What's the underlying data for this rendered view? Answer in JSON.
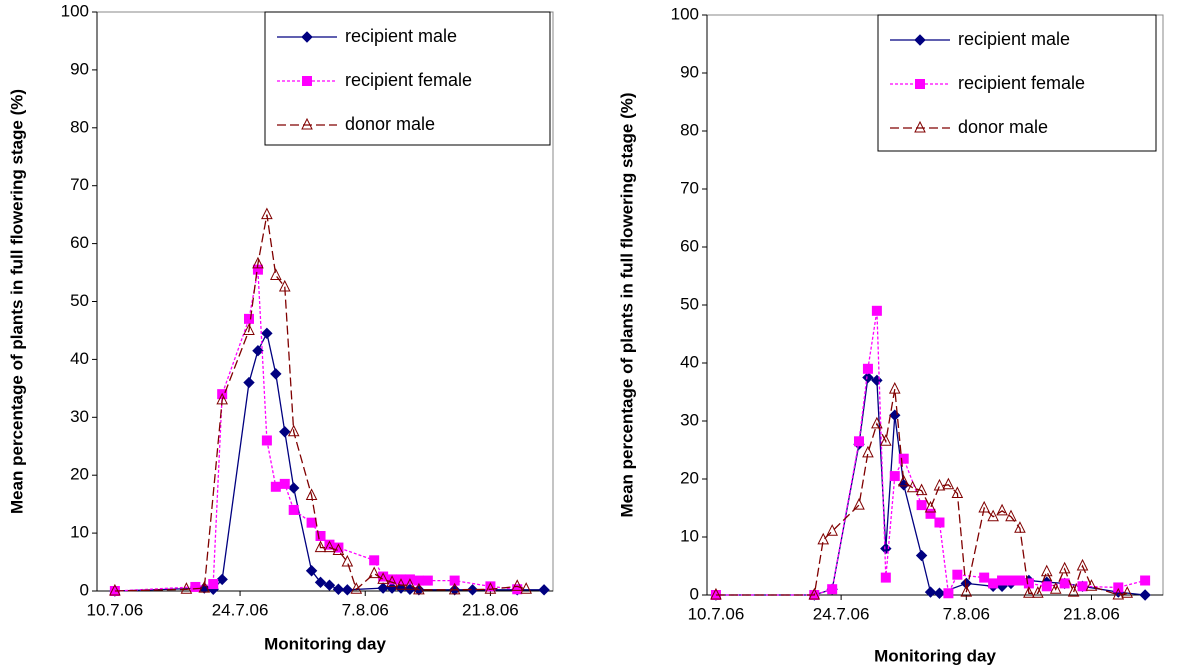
{
  "chart_data": [
    {
      "type": "line",
      "x_label": "Monitoring day",
      "y_label": "Mean percentage of plants in full flowering stage (%)",
      "xlim": [
        "2006-07-08",
        "2006-08-28"
      ],
      "xticks": [
        {
          "value": "2006-07-10",
          "label": "10.7.06"
        },
        {
          "value": "2006-07-24",
          "label": "24.7.06"
        },
        {
          "value": "2006-08-07",
          "label": "7.8.06"
        },
        {
          "value": "2006-08-21",
          "label": "21.8.06"
        }
      ],
      "ylim": [
        0,
        100
      ],
      "yticks": [
        0,
        10,
        20,
        30,
        40,
        50,
        60,
        70,
        80,
        90,
        100
      ],
      "grid": false,
      "legend": "upper right",
      "series": [
        {
          "name": "recipient male",
          "color": "#000080",
          "marker": "diamond",
          "dash": "solid",
          "x": [
            "2006-07-10",
            "2006-07-20",
            "2006-07-21",
            "2006-07-22",
            "2006-07-25",
            "2006-07-26",
            "2006-07-27",
            "2006-07-28",
            "2006-07-29",
            "2006-07-30",
            "2006-08-01",
            "2006-08-02",
            "2006-08-03",
            "2006-08-04",
            "2006-08-05",
            "2006-08-09",
            "2006-08-10",
            "2006-08-11",
            "2006-08-12",
            "2006-08-13",
            "2006-08-17",
            "2006-08-19",
            "2006-08-24",
            "2006-08-27"
          ],
          "values": [
            0,
            0.5,
            0.3,
            2,
            36,
            41.5,
            44.5,
            37.5,
            27.5,
            17.8,
            3.5,
            1.5,
            1,
            0.3,
            0.2,
            0.5,
            0.5,
            0.5,
            0.3,
            0.2,
            0.2,
            0.2,
            0.2,
            0.2
          ]
        },
        {
          "name": "recipient female",
          "color": "#FF00FF",
          "marker": "square",
          "dash": "dotted",
          "x": [
            "2006-07-10",
            "2006-07-19",
            "2006-07-21",
            "2006-07-22",
            "2006-07-25",
            "2006-07-26",
            "2006-07-27",
            "2006-07-28",
            "2006-07-29",
            "2006-07-30",
            "2006-08-01",
            "2006-08-02",
            "2006-08-03",
            "2006-08-04",
            "2006-08-08",
            "2006-08-09",
            "2006-08-10",
            "2006-08-11",
            "2006-08-12",
            "2006-08-13",
            "2006-08-14",
            "2006-08-17",
            "2006-08-21",
            "2006-08-24"
          ],
          "values": [
            0,
            0.7,
            1.2,
            34,
            47,
            55.5,
            26,
            18,
            18.5,
            14,
            11.8,
            9.5,
            8,
            7.5,
            5.3,
            2.5,
            2,
            2,
            2,
            1.8,
            1.8,
            1.8,
            0.8,
            0.3
          ]
        },
        {
          "name": "donor male",
          "color": "#800000",
          "marker": "triangle",
          "dash": "dashed",
          "x": [
            "2006-07-10",
            "2006-07-18",
            "2006-07-20",
            "2006-07-22",
            "2006-07-25",
            "2006-07-26",
            "2006-07-27",
            "2006-07-28",
            "2006-07-29",
            "2006-07-30",
            "2006-08-01",
            "2006-08-02",
            "2006-08-03",
            "2006-08-04",
            "2006-08-05",
            "2006-08-06",
            "2006-08-08",
            "2006-08-09",
            "2006-08-10",
            "2006-08-11",
            "2006-08-12",
            "2006-08-13",
            "2006-08-17",
            "2006-08-21",
            "2006-08-24",
            "2006-08-25"
          ],
          "values": [
            0,
            0.3,
            0.5,
            33,
            45,
            56.5,
            65,
            54.5,
            52.5,
            27.5,
            16.5,
            7.5,
            7.5,
            7,
            5,
            0.3,
            3,
            2,
            1.5,
            1,
            1,
            0.2,
            0.2,
            0.3,
            0.8,
            0.3
          ]
        }
      ]
    },
    {
      "type": "line",
      "x_label": "Monitoring day",
      "y_label": "Mean percentage of plants in full flowering stage (%)",
      "xlim": [
        "2006-07-09",
        "2006-08-29"
      ],
      "xticks": [
        {
          "value": "2006-07-10",
          "label": "10.7.06"
        },
        {
          "value": "2006-07-24",
          "label": "24.7.06"
        },
        {
          "value": "2006-08-07",
          "label": "7.8.06"
        },
        {
          "value": "2006-08-21",
          "label": "21.8.06"
        }
      ],
      "ylim": [
        0,
        100
      ],
      "yticks": [
        0,
        10,
        20,
        30,
        40,
        50,
        60,
        70,
        80,
        90,
        100
      ],
      "grid": false,
      "legend": "upper right",
      "series": [
        {
          "name": "recipient male",
          "color": "#000080",
          "marker": "diamond",
          "dash": "solid",
          "x": [
            "2006-07-10",
            "2006-07-21",
            "2006-07-23",
            "2006-07-26",
            "2006-07-27",
            "2006-07-28",
            "2006-07-29",
            "2006-07-30",
            "2006-07-31",
            "2006-08-02",
            "2006-08-03",
            "2006-08-04",
            "2006-08-07",
            "2006-08-10",
            "2006-08-11",
            "2006-08-12",
            "2006-08-14",
            "2006-08-16",
            "2006-08-18",
            "2006-08-20",
            "2006-08-24",
            "2006-08-27"
          ],
          "values": [
            0,
            0,
            1,
            26,
            37.5,
            37,
            8,
            31,
            19,
            6.8,
            0.5,
            0.3,
            2,
            1.5,
            1.5,
            2,
            2.5,
            2.2,
            2,
            1.5,
            0.5,
            0
          ]
        },
        {
          "name": "recipient female",
          "color": "#FF00FF",
          "marker": "square",
          "dash": "dotted",
          "x": [
            "2006-07-10",
            "2006-07-21",
            "2006-07-23",
            "2006-07-26",
            "2006-07-27",
            "2006-07-28",
            "2006-07-29",
            "2006-07-30",
            "2006-07-31",
            "2006-08-02",
            "2006-08-03",
            "2006-08-04",
            "2006-08-05",
            "2006-08-06",
            "2006-08-09",
            "2006-08-10",
            "2006-08-11",
            "2006-08-12",
            "2006-08-13",
            "2006-08-14",
            "2006-08-16",
            "2006-08-18",
            "2006-08-20",
            "2006-08-24",
            "2006-08-27"
          ],
          "values": [
            0,
            0,
            1,
            26.5,
            39,
            49,
            3,
            20.5,
            23.5,
            15.5,
            14,
            12.5,
            0.3,
            3.5,
            3,
            2,
            2.5,
            2.5,
            2.5,
            2,
            1.5,
            2,
            1.5,
            1.3,
            2.5
          ]
        },
        {
          "name": "donor male",
          "color": "#800000",
          "marker": "triangle",
          "dash": "dashed",
          "x": [
            "2006-07-10",
            "2006-07-21",
            "2006-07-22",
            "2006-07-23",
            "2006-07-26",
            "2006-07-27",
            "2006-07-28",
            "2006-07-29",
            "2006-07-30",
            "2006-07-31",
            "2006-08-01",
            "2006-08-02",
            "2006-08-03",
            "2006-08-04",
            "2006-08-05",
            "2006-08-06",
            "2006-08-07",
            "2006-08-09",
            "2006-08-10",
            "2006-08-11",
            "2006-08-12",
            "2006-08-13",
            "2006-08-14",
            "2006-08-15",
            "2006-08-16",
            "2006-08-17",
            "2006-08-18",
            "2006-08-19",
            "2006-08-20",
            "2006-08-21",
            "2006-08-24",
            "2006-08-25"
          ],
          "values": [
            0,
            0,
            9.5,
            11,
            15.5,
            24.5,
            29.5,
            26.5,
            35.5,
            19.5,
            18.5,
            18,
            15,
            18.8,
            19,
            17.5,
            0.5,
            15,
            13.5,
            14.5,
            13.5,
            11.5,
            0.3,
            0.3,
            4,
            1,
            4.5,
            0.5,
            5,
            1.5,
            0,
            0.3
          ]
        }
      ]
    }
  ]
}
